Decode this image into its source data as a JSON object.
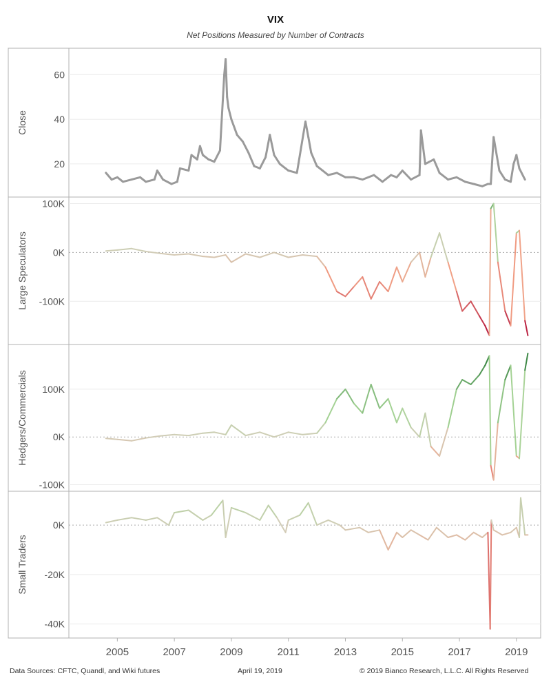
{
  "title": "VIX",
  "subtitle": "Net Positions Measured by Number of Contracts",
  "footer": {
    "sources": "Data Sources: CFTC, Quandl, and Wiki futures",
    "date": "April 19, 2019",
    "copyright": "© 2019 Bianco Research, L.L.C. All Rights Reserved"
  },
  "chart_data": [
    {
      "type": "line",
      "ylabel": "Close",
      "ylim": [
        7,
        70
      ],
      "yticks": [
        20,
        40,
        60
      ],
      "ytick_labels": [
        "20",
        "40",
        "60"
      ],
      "color_mode": "solid",
      "color": "#9a9a9a",
      "x": [
        2004.6,
        2004.8,
        2005.0,
        2005.2,
        2005.5,
        2005.8,
        2006.0,
        2006.3,
        2006.4,
        2006.6,
        2006.9,
        2007.1,
        2007.2,
        2007.5,
        2007.6,
        2007.8,
        2007.9,
        2008.0,
        2008.2,
        2008.4,
        2008.6,
        2008.75,
        2008.8,
        2008.85,
        2008.9,
        2009.0,
        2009.2,
        2009.4,
        2009.6,
        2009.8,
        2010.0,
        2010.2,
        2010.35,
        2010.5,
        2010.7,
        2010.9,
        2011.0,
        2011.3,
        2011.6,
        2011.7,
        2011.8,
        2012.0,
        2012.2,
        2012.4,
        2012.7,
        2013.0,
        2013.3,
        2013.6,
        2014.0,
        2014.3,
        2014.6,
        2014.8,
        2015.0,
        2015.3,
        2015.6,
        2015.65,
        2015.8,
        2016.1,
        2016.3,
        2016.6,
        2016.9,
        2017.2,
        2017.5,
        2017.8,
        2018.0,
        2018.1,
        2018.2,
        2018.4,
        2018.6,
        2018.8,
        2018.9,
        2019.0,
        2019.1,
        2019.3
      ],
      "y": [
        16,
        13,
        14,
        12,
        13,
        14,
        12,
        13,
        17,
        13,
        11,
        12,
        18,
        17,
        24,
        22,
        28,
        24,
        22,
        21,
        26,
        60,
        67,
        50,
        45,
        40,
        33,
        30,
        25,
        19,
        18,
        23,
        33,
        24,
        20,
        18,
        17,
        16,
        39,
        32,
        25,
        19,
        17,
        15,
        16,
        14,
        14,
        13,
        15,
        12,
        15,
        14,
        17,
        13,
        15,
        35,
        20,
        22,
        16,
        13,
        14,
        12,
        11,
        10,
        11,
        11,
        32,
        17,
        13,
        12,
        20,
        24,
        18,
        13
      ]
    },
    {
      "type": "line",
      "ylabel": "Large Speculators",
      "ylim": [
        -180000,
        105000
      ],
      "yticks": [
        -100000,
        0,
        100000
      ],
      "ytick_labels": [
        "-100K",
        "0K",
        "100K"
      ],
      "color_mode": "diverging",
      "x": [
        2004.6,
        2005.0,
        2005.5,
        2006.0,
        2006.5,
        2007.0,
        2007.5,
        2008.0,
        2008.4,
        2008.8,
        2009.0,
        2009.5,
        2010.0,
        2010.5,
        2011.0,
        2011.5,
        2012.0,
        2012.3,
        2012.7,
        2013.0,
        2013.3,
        2013.6,
        2013.9,
        2014.2,
        2014.5,
        2014.8,
        2015.0,
        2015.3,
        2015.6,
        2015.8,
        2016.0,
        2016.3,
        2016.6,
        2016.9,
        2017.1,
        2017.4,
        2017.7,
        2017.9,
        2018.05,
        2018.1,
        2018.2,
        2018.35,
        2018.6,
        2018.8,
        2019.0,
        2019.1,
        2019.3,
        2019.4
      ],
      "y": [
        3000,
        5000,
        8000,
        2000,
        -2000,
        -5000,
        -3000,
        -8000,
        -10000,
        -5000,
        -20000,
        -3000,
        -10000,
        0,
        -10000,
        -5000,
        -8000,
        -30000,
        -80000,
        -90000,
        -70000,
        -50000,
        -95000,
        -60000,
        -80000,
        -30000,
        -60000,
        -20000,
        0,
        -50000,
        -10000,
        40000,
        -20000,
        -80000,
        -120000,
        -100000,
        -130000,
        -150000,
        -170000,
        90000,
        100000,
        -20000,
        -120000,
        -150000,
        40000,
        45000,
        -140000,
        -170000
      ]
    },
    {
      "type": "line",
      "ylabel": "Hedgers/Commercials",
      "ylim": [
        -105000,
        185000
      ],
      "yticks": [
        -100000,
        0,
        100000
      ],
      "ytick_labels": [
        "-100K",
        "0K",
        "100K"
      ],
      "color_mode": "diverging",
      "x": [
        2004.6,
        2005.0,
        2005.5,
        2006.0,
        2006.5,
        2007.0,
        2007.5,
        2008.0,
        2008.4,
        2008.8,
        2009.0,
        2009.5,
        2010.0,
        2010.5,
        2011.0,
        2011.5,
        2012.0,
        2012.3,
        2012.7,
        2013.0,
        2013.3,
        2013.6,
        2013.9,
        2014.2,
        2014.5,
        2014.8,
        2015.0,
        2015.3,
        2015.6,
        2015.8,
        2016.0,
        2016.3,
        2016.6,
        2016.9,
        2017.1,
        2017.4,
        2017.7,
        2017.9,
        2018.05,
        2018.1,
        2018.2,
        2018.35,
        2018.6,
        2018.8,
        2019.0,
        2019.1,
        2019.3,
        2019.4
      ],
      "y": [
        -3000,
        -5000,
        -8000,
        -2000,
        2000,
        5000,
        3000,
        8000,
        10000,
        5000,
        25000,
        3000,
        10000,
        0,
        10000,
        5000,
        8000,
        30000,
        80000,
        100000,
        70000,
        50000,
        110000,
        60000,
        80000,
        30000,
        60000,
        20000,
        0,
        50000,
        -20000,
        -40000,
        20000,
        100000,
        120000,
        110000,
        130000,
        150000,
        170000,
        -60000,
        -90000,
        30000,
        120000,
        150000,
        -40000,
        -45000,
        140000,
        175000
      ]
    },
    {
      "type": "line",
      "ylabel": "Small Traders",
      "ylim": [
        -44000,
        12000
      ],
      "yticks": [
        -40000,
        -20000,
        0
      ],
      "ytick_labels": [
        "-40K",
        "-20K",
        "0K"
      ],
      "color_mode": "diverging",
      "x": [
        2004.6,
        2005.0,
        2005.5,
        2006.0,
        2006.4,
        2006.8,
        2007.0,
        2007.5,
        2008.0,
        2008.3,
        2008.7,
        2008.8,
        2009.0,
        2009.5,
        2010.0,
        2010.3,
        2010.6,
        2010.9,
        2011.0,
        2011.4,
        2011.7,
        2012.0,
        2012.4,
        2012.8,
        2013.0,
        2013.5,
        2013.8,
        2014.2,
        2014.5,
        2014.8,
        2015.0,
        2015.3,
        2015.6,
        2015.9,
        2016.2,
        2016.6,
        2016.9,
        2017.2,
        2017.5,
        2017.8,
        2018.0,
        2018.08,
        2018.12,
        2018.2,
        2018.5,
        2018.8,
        2019.0,
        2019.1,
        2019.15,
        2019.3,
        2019.4
      ],
      "y": [
        1000,
        2000,
        3000,
        2000,
        3000,
        0,
        5000,
        6000,
        2000,
        4000,
        10000,
        -5000,
        7000,
        5000,
        2000,
        8000,
        3000,
        -3000,
        2000,
        4000,
        9000,
        0,
        2000,
        0,
        -2000,
        -1000,
        -3000,
        -2000,
        -10000,
        -3000,
        -5000,
        -2000,
        -4000,
        -6000,
        -1000,
        -5000,
        -4000,
        -6000,
        -3000,
        -5000,
        -3000,
        -42000,
        2000,
        -2000,
        -4000,
        -3000,
        -1000,
        -5000,
        11000,
        -4000,
        -4000
      ]
    }
  ],
  "x_axis": {
    "range": [
      2003.3,
      2019.85
    ],
    "ticks": [
      2005,
      2007,
      2009,
      2011,
      2013,
      2015,
      2017,
      2019
    ],
    "labels": [
      "2005",
      "2007",
      "2009",
      "2011",
      "2013",
      "2015",
      "2017",
      "2019"
    ]
  },
  "colors": {
    "neutral": "#d2cdb8",
    "pos_light": "#a6d496",
    "pos_dark": "#2d7d3a",
    "neg_light": "#f2a085",
    "neg_dark": "#b3123a",
    "zero_line": "#aaaaaa",
    "grid": "#ebebeb",
    "border": "#b0b0b0"
  }
}
